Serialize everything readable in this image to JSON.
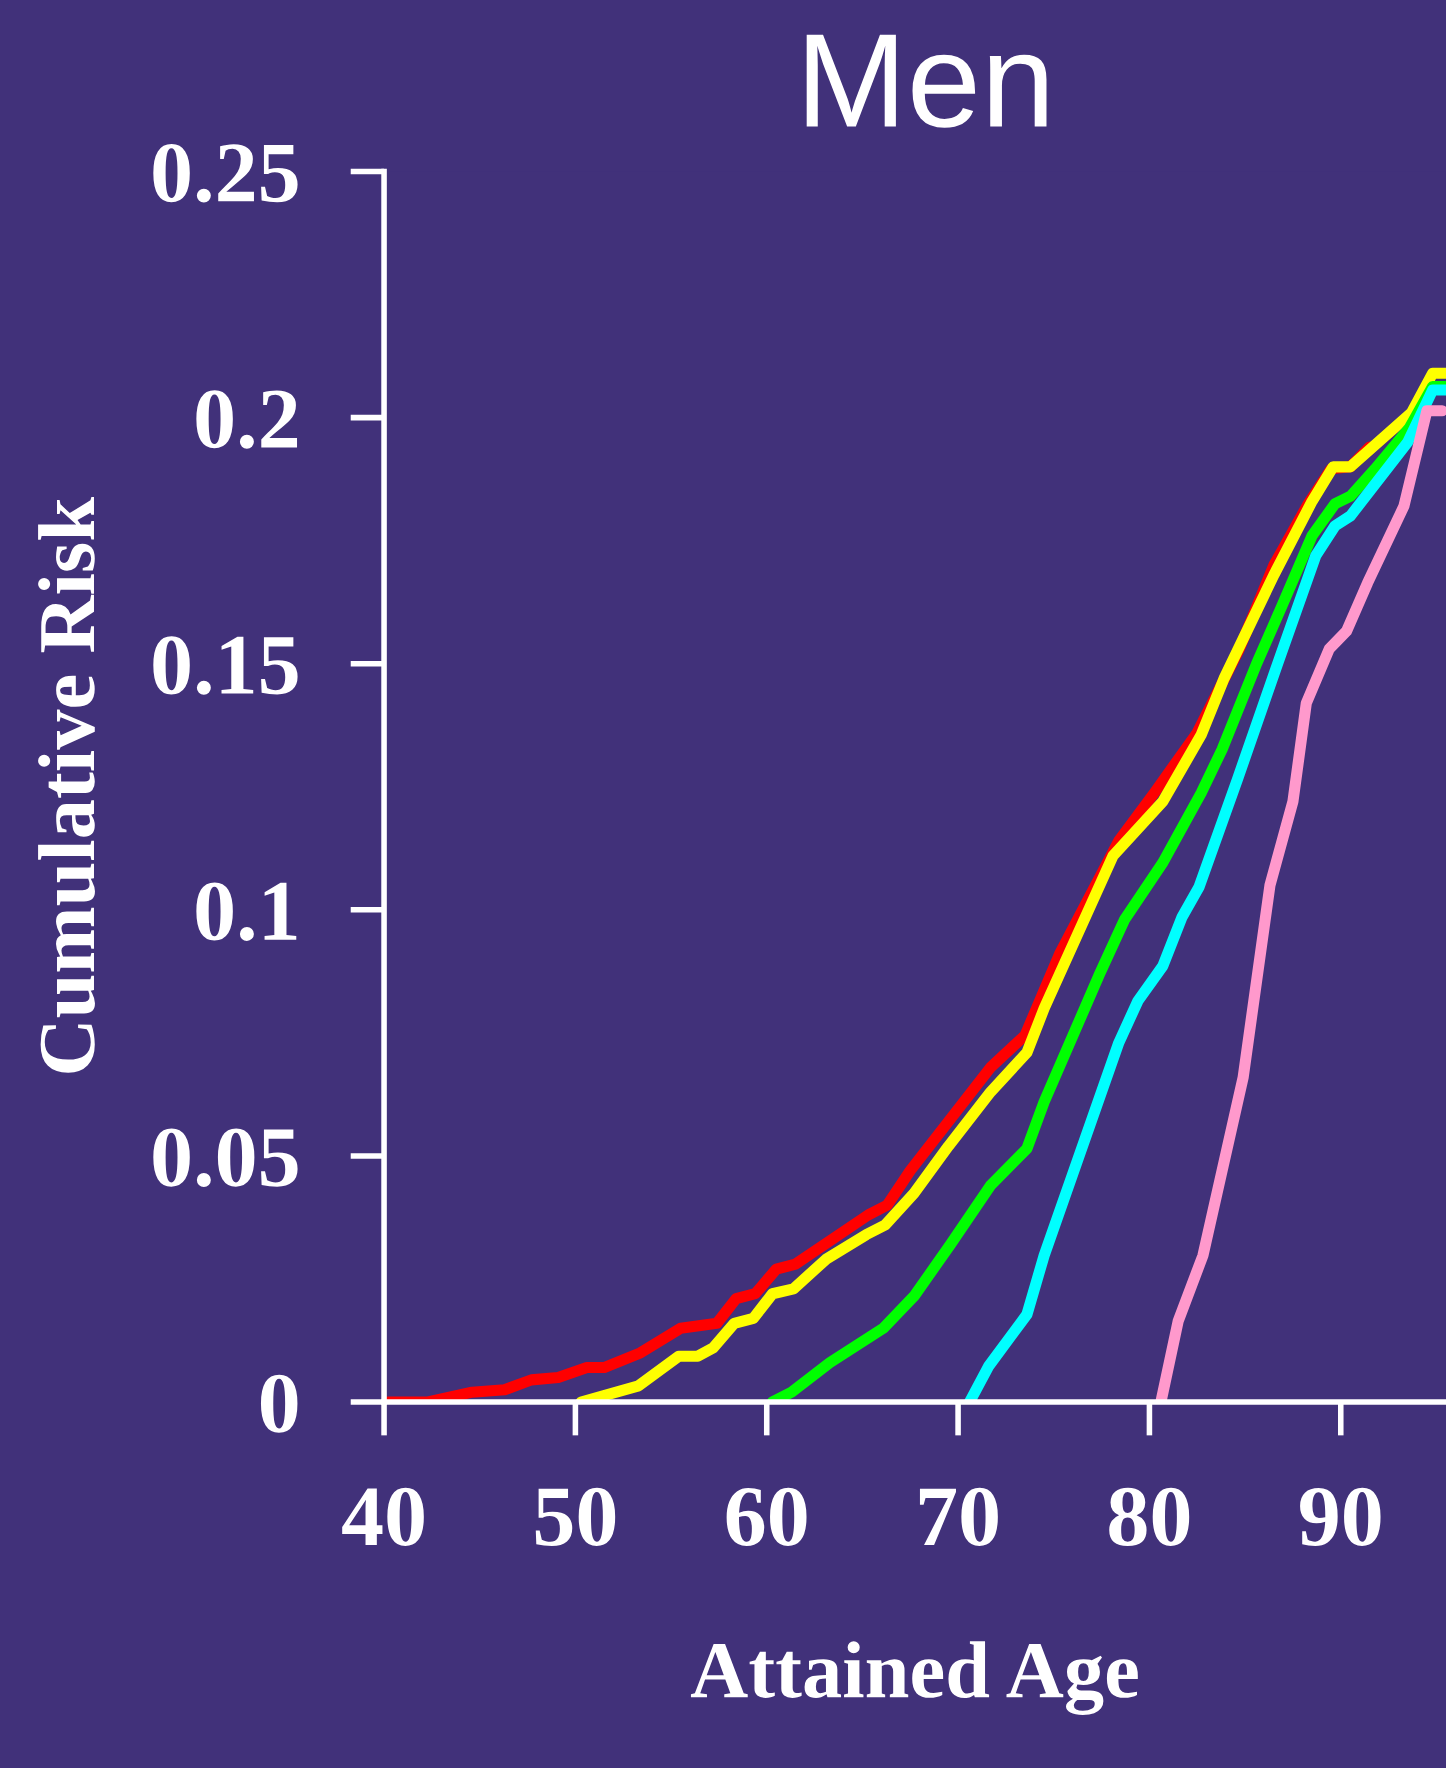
{
  "chart_data": {
    "type": "line",
    "title": "Men",
    "xlabel": "Attained Age",
    "ylabel": "Cumulative Risk",
    "xlim": [
      40,
      95.5
    ],
    "ylim": [
      0,
      0.25
    ],
    "xticks": [
      40,
      50,
      60,
      70,
      80,
      90
    ],
    "yticks": [
      0,
      0.05,
      0.1,
      0.15,
      0.2,
      0.25
    ],
    "grid": false,
    "legend": false,
    "marker": "none",
    "line_style": "solid",
    "series": [
      {
        "color": "#ff0000",
        "x": [
          40.2,
          42.3,
          44.6,
          46.3,
          47.7,
          49.1,
          50.6,
          51.5,
          53.4,
          55.5,
          57.4,
          58.4,
          59.4,
          60.5,
          61.5,
          65.3,
          66.3,
          67.5,
          71.7,
          73.5,
          75.3,
          78.4,
          80.3,
          82.5,
          84.7,
          86.5,
          88.3,
          89.5,
          90.5,
          91.5
        ],
        "values": [
          0,
          0,
          0.002,
          0.0025,
          0.0045,
          0.005,
          0.007,
          0.007,
          0.01,
          0.015,
          0.016,
          0.021,
          0.022,
          0.027,
          0.028,
          0.038,
          0.04,
          0.047,
          0.068,
          0.0745,
          0.091,
          0.114,
          0.124,
          0.136,
          0.153,
          0.17,
          0.1825,
          0.1896,
          0.19,
          0.194
        ]
      },
      {
        "color": "#ffff00",
        "x": [
          50.3,
          53.3,
          55.4,
          56.4,
          57.2,
          58.3,
          59.3,
          60.3,
          61.4,
          63.1,
          65.2,
          66.2,
          67.7,
          69.5,
          71.7,
          73.6,
          74.5,
          78.1,
          80.7,
          82.7,
          83.9,
          86.5,
          88.5,
          89.6,
          90.5,
          93.7,
          94.8,
          95.5
        ],
        "values": [
          0,
          0.0033,
          0.0093,
          0.0093,
          0.011,
          0.016,
          0.017,
          0.022,
          0.023,
          0.029,
          0.034,
          0.036,
          0.0424,
          0.052,
          0.063,
          0.071,
          0.08,
          0.111,
          0.122,
          0.1355,
          0.147,
          0.168,
          0.183,
          0.19,
          0.19,
          0.201,
          0.209,
          0.209
        ]
      },
      {
        "color": "#00ff00",
        "x": [
          60.3,
          61.3,
          63.3,
          66.1,
          67.7,
          69.6,
          71.7,
          73.6,
          74.5,
          77.4,
          78.7,
          80.7,
          82.7,
          83.8,
          85.6,
          86.9,
          88.5,
          89.7,
          90.5,
          91.8,
          93.6,
          94.8,
          95.5
        ],
        "values": [
          0,
          0.002,
          0.008,
          0.015,
          0.0215,
          0.032,
          0.044,
          0.0515,
          0.061,
          0.087,
          0.098,
          0.1096,
          0.1237,
          0.1326,
          0.15,
          0.1615,
          0.176,
          0.1825,
          0.184,
          0.1896,
          0.198,
          0.2063,
          0.2063
        ]
      },
      {
        "color": "#00ffff",
        "x": [
          70.6,
          71.6,
          73.6,
          74.5,
          78.4,
          79.4,
          80.7,
          81.7,
          82.6,
          84.6,
          86.7,
          88.7,
          89.7,
          90.5,
          93.5,
          94.8,
          95.5
        ],
        "values": [
          0,
          0.0073,
          0.0178,
          0.0298,
          0.073,
          0.0815,
          0.0886,
          0.0985,
          0.1047,
          0.1265,
          0.15,
          0.172,
          0.178,
          0.18,
          0.195,
          0.2056,
          0.2056
        ]
      },
      {
        "color": "#ff99cc",
        "x": [
          80.6,
          81.5,
          82.8,
          84.9,
          86.3,
          87.5,
          88.2,
          89.4,
          90.3,
          91.4,
          93.3,
          94.5,
          95.3
        ],
        "values": [
          0,
          0.0164,
          0.0298,
          0.066,
          0.105,
          0.122,
          0.142,
          0.153,
          0.1566,
          0.1664,
          0.182,
          0.2014,
          0.2014
        ]
      }
    ]
  }
}
